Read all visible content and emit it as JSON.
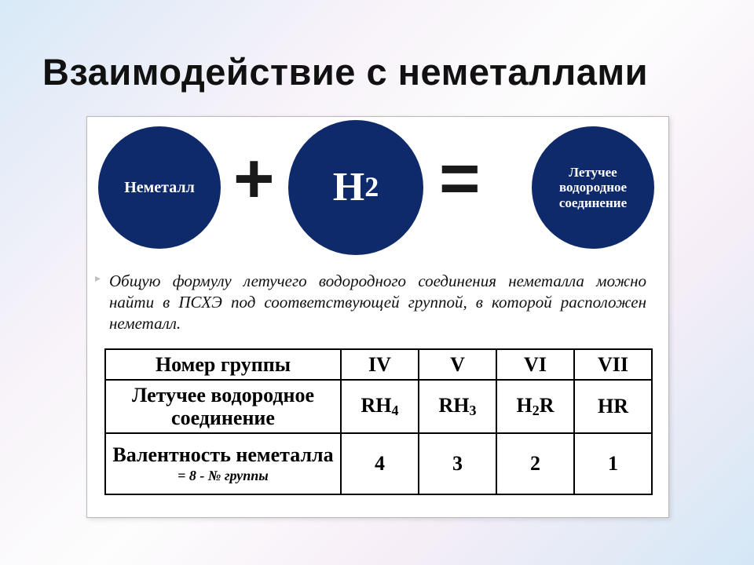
{
  "title": "Взаимодействие с неметаллами",
  "equation": {
    "circle_color": "#0f2a6b",
    "circle1": "Неметалл",
    "circle2_html": "H<sub>2</sub>",
    "circle3": "Летучее водородное соединение",
    "plus": "+",
    "equal": "="
  },
  "note": "Общую формулу летучего водородного соединения неметалла можно найти в ПСХЭ под соответствующей группой, в которой расположен неметалл.",
  "table": {
    "rows": [
      {
        "head": "Номер группы",
        "sub": "",
        "cells": [
          "IV",
          "V",
          "VI",
          "VII"
        ]
      },
      {
        "head": "Летучее водородное соединение",
        "sub": "",
        "cells_html": [
          "RH<sub class='f'>4</sub>",
          "RH<sub class='f'>3</sub>",
          "H<sub class='f'>2</sub>R",
          "HR"
        ]
      },
      {
        "head": "Валентность неметалла",
        "sub": "= 8 - № группы",
        "cells": [
          "4",
          "3",
          "2",
          "1"
        ],
        "tall": true
      }
    ]
  },
  "colors": {
    "text": "#111111",
    "border": "#000000",
    "panel_bg": "#ffffff"
  }
}
